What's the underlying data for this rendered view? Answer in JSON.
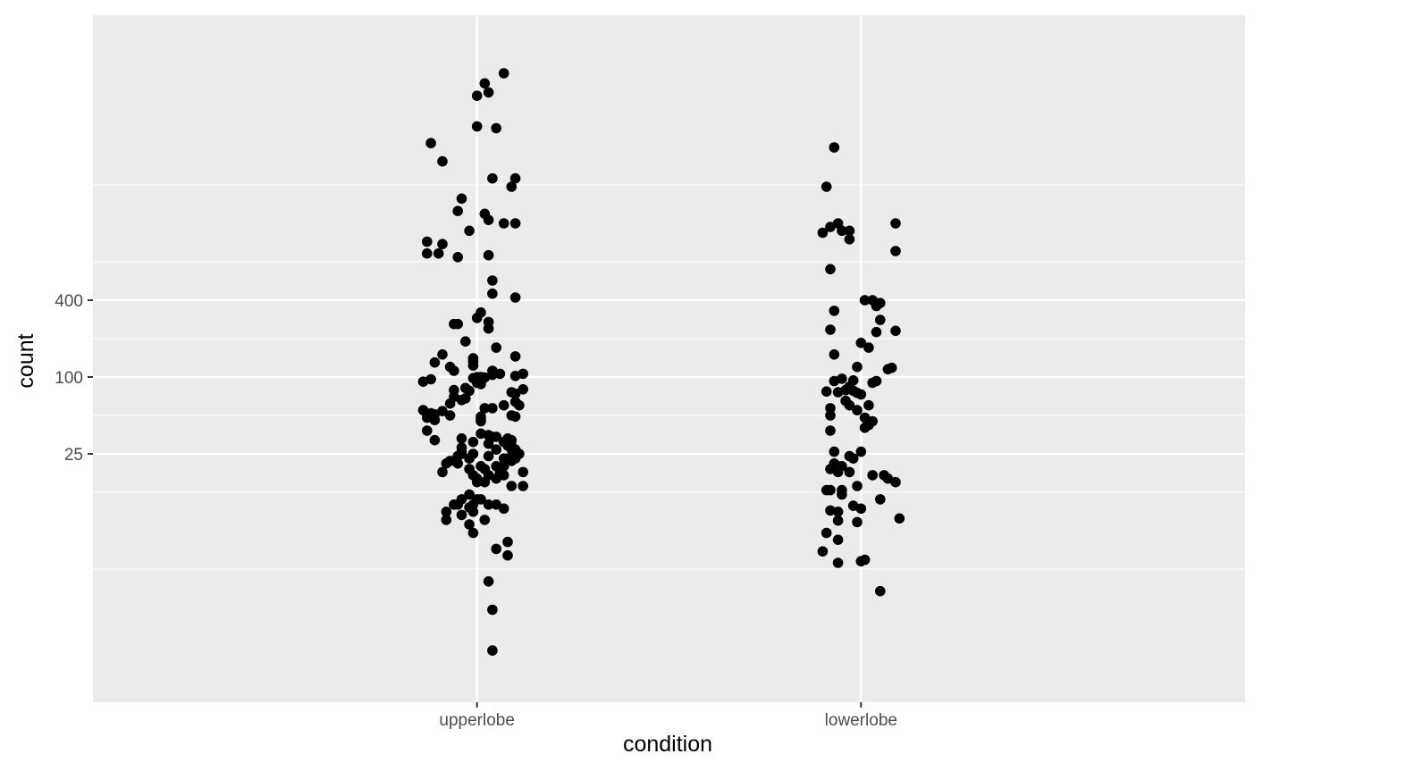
{
  "chart_data": {
    "type": "scatter",
    "subtype": "jitter (strip plot)",
    "title": "",
    "xlabel": "condition",
    "ylabel": "count",
    "y_scale": "log2",
    "y_ticks": [
      25,
      100,
      400
    ],
    "y_tick_labels": [
      "25",
      "100",
      "400"
    ],
    "ylim": [
      0.1,
      51000
    ],
    "categories": [
      "upperlobe",
      "lowerlobe"
    ],
    "grid": true,
    "legend": "none",
    "point_color": "#000000",
    "panel_color": "#ebebeb",
    "gridline_color": "#ffffff",
    "series": [
      {
        "category": "upperlobe",
        "points": [
          {
            "jitter": 0.07,
            "y": 24000
          },
          {
            "jitter": 0.02,
            "y": 20000
          },
          {
            "jitter": 0.03,
            "y": 17000
          },
          {
            "jitter": 0.0,
            "y": 16000
          },
          {
            "jitter": 0.0,
            "y": 9200
          },
          {
            "jitter": 0.05,
            "y": 8900
          },
          {
            "jitter": -0.12,
            "y": 6800
          },
          {
            "jitter": -0.09,
            "y": 4900
          },
          {
            "jitter": 0.04,
            "y": 3600
          },
          {
            "jitter": 0.1,
            "y": 3600
          },
          {
            "jitter": 0.09,
            "y": 3100
          },
          {
            "jitter": -0.04,
            "y": 2500
          },
          {
            "jitter": -0.05,
            "y": 2000
          },
          {
            "jitter": 0.02,
            "y": 1900
          },
          {
            "jitter": 0.03,
            "y": 1700
          },
          {
            "jitter": 0.07,
            "y": 1600
          },
          {
            "jitter": 0.1,
            "y": 1600
          },
          {
            "jitter": -0.02,
            "y": 1400
          },
          {
            "jitter": -0.13,
            "y": 1150
          },
          {
            "jitter": -0.09,
            "y": 1100
          },
          {
            "jitter": -0.13,
            "y": 930
          },
          {
            "jitter": -0.1,
            "y": 930
          },
          {
            "jitter": 0.03,
            "y": 900
          },
          {
            "jitter": -0.05,
            "y": 870
          },
          {
            "jitter": 0.04,
            "y": 570
          },
          {
            "jitter": 0.04,
            "y": 450
          },
          {
            "jitter": 0.1,
            "y": 420
          },
          {
            "jitter": 0.01,
            "y": 320
          },
          {
            "jitter": 0.0,
            "y": 290
          },
          {
            "jitter": 0.03,
            "y": 270
          },
          {
            "jitter": -0.05,
            "y": 260
          },
          {
            "jitter": -0.06,
            "y": 260
          },
          {
            "jitter": 0.03,
            "y": 240
          },
          {
            "jitter": -0.03,
            "y": 190
          },
          {
            "jitter": 0.05,
            "y": 170
          },
          {
            "jitter": 0.1,
            "y": 145
          },
          {
            "jitter": -0.09,
            "y": 150
          },
          {
            "jitter": -0.01,
            "y": 140
          },
          {
            "jitter": -0.01,
            "y": 132
          },
          {
            "jitter": -0.11,
            "y": 130
          },
          {
            "jitter": -0.01,
            "y": 123
          },
          {
            "jitter": -0.07,
            "y": 120
          },
          {
            "jitter": -0.06,
            "y": 112
          },
          {
            "jitter": 0.04,
            "y": 112
          },
          {
            "jitter": 0.12,
            "y": 106
          },
          {
            "jitter": 0.06,
            "y": 106
          },
          {
            "jitter": 0.04,
            "y": 104
          },
          {
            "jitter": 0.1,
            "y": 102
          },
          {
            "jitter": 0.0,
            "y": 100
          },
          {
            "jitter": 0.01,
            "y": 100
          },
          {
            "jitter": 0.02,
            "y": 99
          },
          {
            "jitter": -0.01,
            "y": 98
          },
          {
            "jitter": -0.12,
            "y": 96
          },
          {
            "jitter": -0.14,
            "y": 92
          },
          {
            "jitter": 0.0,
            "y": 90
          },
          {
            "jitter": 0.01,
            "y": 88
          },
          {
            "jitter": -0.03,
            "y": 82
          },
          {
            "jitter": 0.12,
            "y": 80
          },
          {
            "jitter": -0.06,
            "y": 79
          },
          {
            "jitter": -0.02,
            "y": 78
          },
          {
            "jitter": 0.09,
            "y": 76
          },
          {
            "jitter": 0.1,
            "y": 74
          },
          {
            "jitter": -0.06,
            "y": 70
          },
          {
            "jitter": -0.03,
            "y": 68
          },
          {
            "jitter": -0.04,
            "y": 66
          },
          {
            "jitter": 0.1,
            "y": 64
          },
          {
            "jitter": -0.07,
            "y": 62
          },
          {
            "jitter": 0.07,
            "y": 60
          },
          {
            "jitter": 0.11,
            "y": 60
          },
          {
            "jitter": 0.02,
            "y": 57
          },
          {
            "jitter": 0.04,
            "y": 57
          },
          {
            "jitter": -0.14,
            "y": 55
          },
          {
            "jitter": -0.09,
            "y": 54
          },
          {
            "jitter": -0.12,
            "y": 52
          },
          {
            "jitter": -0.11,
            "y": 51
          },
          {
            "jitter": -0.07,
            "y": 50
          },
          {
            "jitter": 0.1,
            "y": 49
          },
          {
            "jitter": 0.09,
            "y": 50
          },
          {
            "jitter": 0.01,
            "y": 49
          },
          {
            "jitter": -0.13,
            "y": 48
          },
          {
            "jitter": 0.01,
            "y": 47
          },
          {
            "jitter": -0.11,
            "y": 46
          },
          {
            "jitter": 0.01,
            "y": 45
          },
          {
            "jitter": -0.13,
            "y": 38
          },
          {
            "jitter": 0.01,
            "y": 36
          },
          {
            "jitter": 0.03,
            "y": 35
          },
          {
            "jitter": 0.05,
            "y": 34
          },
          {
            "jitter": 0.04,
            "y": 34
          },
          {
            "jitter": -0.04,
            "y": 33
          },
          {
            "jitter": 0.08,
            "y": 33
          },
          {
            "jitter": 0.09,
            "y": 32
          },
          {
            "jitter": -0.11,
            "y": 32
          },
          {
            "jitter": 0.07,
            "y": 31
          },
          {
            "jitter": -0.01,
            "y": 31
          },
          {
            "jitter": 0.03,
            "y": 30
          },
          {
            "jitter": 0.08,
            "y": 29
          },
          {
            "jitter": 0.09,
            "y": 29
          },
          {
            "jitter": -0.04,
            "y": 28
          },
          {
            "jitter": 0.09,
            "y": 27
          },
          {
            "jitter": 0.1,
            "y": 27
          },
          {
            "jitter": 0.05,
            "y": 27
          },
          {
            "jitter": -0.04,
            "y": 26
          },
          {
            "jitter": -0.01,
            "y": 25
          },
          {
            "jitter": -0.04,
            "y": 25
          },
          {
            "jitter": 0.11,
            "y": 25
          },
          {
            "jitter": -0.05,
            "y": 24
          },
          {
            "jitter": 0.03,
            "y": 24
          },
          {
            "jitter": -0.02,
            "y": 23
          },
          {
            "jitter": 0.07,
            "y": 23
          },
          {
            "jitter": 0.08,
            "y": 23
          },
          {
            "jitter": 0.1,
            "y": 23
          },
          {
            "jitter": 0.09,
            "y": 22
          },
          {
            "jitter": -0.07,
            "y": 22
          },
          {
            "jitter": -0.08,
            "y": 21
          },
          {
            "jitter": -0.05,
            "y": 21
          },
          {
            "jitter": 0.01,
            "y": 20
          },
          {
            "jitter": 0.05,
            "y": 20
          },
          {
            "jitter": 0.07,
            "y": 20
          },
          {
            "jitter": -0.02,
            "y": 19
          },
          {
            "jitter": 0.02,
            "y": 19
          },
          {
            "jitter": 0.12,
            "y": 18
          },
          {
            "jitter": 0.06,
            "y": 18
          },
          {
            "jitter": -0.09,
            "y": 18
          },
          {
            "jitter": 0.03,
            "y": 17
          },
          {
            "jitter": 0.07,
            "y": 17
          },
          {
            "jitter": -0.01,
            "y": 17
          },
          {
            "jitter": 0.05,
            "y": 16
          },
          {
            "jitter": 0.0,
            "y": 16
          },
          {
            "jitter": 0.0,
            "y": 15
          },
          {
            "jitter": 0.02,
            "y": 15
          },
          {
            "jitter": 0.09,
            "y": 14
          },
          {
            "jitter": 0.12,
            "y": 14
          },
          {
            "jitter": -0.02,
            "y": 12
          },
          {
            "jitter": 0.01,
            "y": 11
          },
          {
            "jitter": 0.0,
            "y": 11
          },
          {
            "jitter": -0.04,
            "y": 11
          },
          {
            "jitter": -0.06,
            "y": 10
          },
          {
            "jitter": -0.05,
            "y": 10
          },
          {
            "jitter": 0.03,
            "y": 10
          },
          {
            "jitter": -0.01,
            "y": 10
          },
          {
            "jitter": 0.05,
            "y": 10
          },
          {
            "jitter": -0.02,
            "y": 9.5
          },
          {
            "jitter": 0.07,
            "y": 9.3
          },
          {
            "jitter": -0.08,
            "y": 8.8
          },
          {
            "jitter": -0.01,
            "y": 8.8
          },
          {
            "jitter": -0.04,
            "y": 8.3
          },
          {
            "jitter": -0.08,
            "y": 7.6
          },
          {
            "jitter": 0.02,
            "y": 7.6
          },
          {
            "jitter": -0.02,
            "y": 7.0
          },
          {
            "jitter": -0.01,
            "y": 6.0
          },
          {
            "jitter": 0.08,
            "y": 5.1
          },
          {
            "jitter": 0.05,
            "y": 4.5
          },
          {
            "jitter": 0.08,
            "y": 4.0
          },
          {
            "jitter": 0.03,
            "y": 2.5
          },
          {
            "jitter": 0.04,
            "y": 1.5
          },
          {
            "jitter": 0.04,
            "y": 0.72
          }
        ]
      },
      {
        "category": "lowerlobe",
        "points": [
          {
            "jitter": -0.07,
            "y": 6300
          },
          {
            "jitter": -0.09,
            "y": 3100
          },
          {
            "jitter": -0.06,
            "y": 1600
          },
          {
            "jitter": 0.09,
            "y": 1600
          },
          {
            "jitter": -0.08,
            "y": 1500
          },
          {
            "jitter": -0.05,
            "y": 1400
          },
          {
            "jitter": -0.1,
            "y": 1350
          },
          {
            "jitter": -0.03,
            "y": 1400
          },
          {
            "jitter": -0.03,
            "y": 1200
          },
          {
            "jitter": 0.09,
            "y": 970
          },
          {
            "jitter": -0.08,
            "y": 700
          },
          {
            "jitter": 0.01,
            "y": 400
          },
          {
            "jitter": 0.03,
            "y": 400
          },
          {
            "jitter": -0.07,
            "y": 330
          },
          {
            "jitter": 0.05,
            "y": 380
          },
          {
            "jitter": 0.04,
            "y": 360
          },
          {
            "jitter": 0.05,
            "y": 280
          },
          {
            "jitter": -0.08,
            "y": 235
          },
          {
            "jitter": 0.04,
            "y": 225
          },
          {
            "jitter": 0.09,
            "y": 230
          },
          {
            "jitter": 0.0,
            "y": 185
          },
          {
            "jitter": -0.07,
            "y": 150
          },
          {
            "jitter": 0.02,
            "y": 170
          },
          {
            "jitter": -0.01,
            "y": 120
          },
          {
            "jitter": 0.08,
            "y": 118
          },
          {
            "jitter": 0.07,
            "y": 115
          },
          {
            "jitter": -0.07,
            "y": 93
          },
          {
            "jitter": 0.04,
            "y": 93
          },
          {
            "jitter": -0.02,
            "y": 94
          },
          {
            "jitter": -0.05,
            "y": 97
          },
          {
            "jitter": 0.03,
            "y": 90
          },
          {
            "jitter": -0.03,
            "y": 84
          },
          {
            "jitter": -0.04,
            "y": 79
          },
          {
            "jitter": -0.09,
            "y": 77
          },
          {
            "jitter": -0.02,
            "y": 78
          },
          {
            "jitter": -0.01,
            "y": 75
          },
          {
            "jitter": -0.06,
            "y": 76
          },
          {
            "jitter": 0.0,
            "y": 73
          },
          {
            "jitter": -0.04,
            "y": 65
          },
          {
            "jitter": -0.03,
            "y": 60
          },
          {
            "jitter": 0.02,
            "y": 60
          },
          {
            "jitter": -0.08,
            "y": 57
          },
          {
            "jitter": -0.01,
            "y": 55
          },
          {
            "jitter": -0.08,
            "y": 50
          },
          {
            "jitter": 0.01,
            "y": 48
          },
          {
            "jitter": 0.03,
            "y": 45
          },
          {
            "jitter": 0.02,
            "y": 42
          },
          {
            "jitter": 0.01,
            "y": 40
          },
          {
            "jitter": -0.08,
            "y": 38
          },
          {
            "jitter": -0.07,
            "y": 26
          },
          {
            "jitter": 0.0,
            "y": 26
          },
          {
            "jitter": -0.03,
            "y": 24
          },
          {
            "jitter": -0.02,
            "y": 23
          },
          {
            "jitter": -0.07,
            "y": 21
          },
          {
            "jitter": -0.06,
            "y": 20
          },
          {
            "jitter": -0.05,
            "y": 20
          },
          {
            "jitter": -0.08,
            "y": 19
          },
          {
            "jitter": -0.06,
            "y": 18
          },
          {
            "jitter": -0.03,
            "y": 18
          },
          {
            "jitter": 0.03,
            "y": 17
          },
          {
            "jitter": 0.06,
            "y": 17
          },
          {
            "jitter": 0.07,
            "y": 16
          },
          {
            "jitter": 0.09,
            "y": 15
          },
          {
            "jitter": -0.01,
            "y": 14
          },
          {
            "jitter": -0.05,
            "y": 13
          },
          {
            "jitter": -0.09,
            "y": 13
          },
          {
            "jitter": -0.08,
            "y": 13
          },
          {
            "jitter": -0.05,
            "y": 12
          },
          {
            "jitter": 0.05,
            "y": 11
          },
          {
            "jitter": -0.02,
            "y": 9.8
          },
          {
            "jitter": 0.0,
            "y": 9.3
          },
          {
            "jitter": -0.08,
            "y": 9.0
          },
          {
            "jitter": -0.06,
            "y": 8.8
          },
          {
            "jitter": 0.1,
            "y": 7.8
          },
          {
            "jitter": -0.06,
            "y": 7.5
          },
          {
            "jitter": -0.01,
            "y": 7.3
          },
          {
            "jitter": -0.09,
            "y": 6.0
          },
          {
            "jitter": -0.06,
            "y": 5.3
          },
          {
            "jitter": -0.1,
            "y": 4.3
          },
          {
            "jitter": 0.01,
            "y": 3.7
          },
          {
            "jitter": 0.0,
            "y": 3.6
          },
          {
            "jitter": -0.06,
            "y": 3.5
          },
          {
            "jitter": 0.05,
            "y": 2.1
          }
        ]
      }
    ]
  }
}
